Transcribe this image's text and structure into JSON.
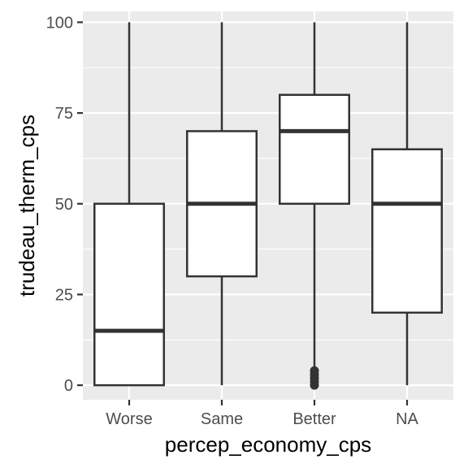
{
  "chart_data": {
    "type": "boxplot",
    "title": "",
    "xlabel": "percep_economy_cps",
    "ylabel": "trudeau_therm_cps",
    "categories": [
      "Worse",
      "Same",
      "Better",
      "NA"
    ],
    "ylim": [
      -4,
      103
    ],
    "y_ticks": [
      0,
      25,
      50,
      75,
      100
    ],
    "y_tick_labels": [
      "0",
      "25",
      "50",
      "75",
      "100"
    ],
    "grid": true,
    "legend": "none",
    "boxes": [
      {
        "category": "Worse",
        "min": 0,
        "q1": 0,
        "median": 15,
        "q3": 50,
        "max": 100,
        "outliers": []
      },
      {
        "category": "Same",
        "min": 0,
        "q1": 30,
        "median": 50,
        "q3": 70,
        "max": 100,
        "outliers": []
      },
      {
        "category": "Better",
        "min": 5,
        "q1": 50,
        "median": 70,
        "q3": 80,
        "max": 100,
        "outliers": [
          0,
          1,
          2,
          3,
          4
        ]
      },
      {
        "category": "NA",
        "min": 0,
        "q1": 20,
        "median": 50,
        "q3": 65,
        "max": 100,
        "outliers": []
      }
    ],
    "colors": {
      "panel_bg": "#ebebeb",
      "grid": "#ffffff",
      "box_fill": "#ffffff",
      "box_stroke": "#333333",
      "tick_text": "#4d4d4d",
      "tick_mark": "#333333",
      "title_text": "#000000"
    }
  }
}
